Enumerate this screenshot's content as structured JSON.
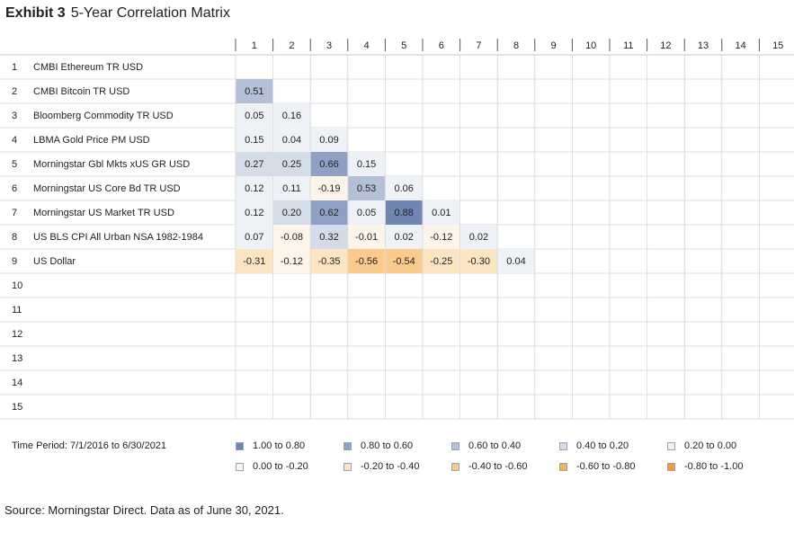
{
  "title": {
    "exhibit": "Exhibit 3",
    "text": "5-Year Correlation Matrix"
  },
  "chart_data": {
    "type": "heatmap",
    "columns": [
      "1",
      "2",
      "3",
      "4",
      "5",
      "6",
      "7",
      "8",
      "9",
      "10",
      "11",
      "12",
      "13",
      "14",
      "15"
    ],
    "rows": [
      {
        "num": "1",
        "label": "CMBI Ethereum TR USD",
        "values": []
      },
      {
        "num": "2",
        "label": "CMBI Bitcoin TR USD",
        "values": [
          0.51
        ]
      },
      {
        "num": "3",
        "label": "Bloomberg Commodity TR USD",
        "values": [
          0.05,
          0.16
        ]
      },
      {
        "num": "4",
        "label": "LBMA Gold Price PM USD",
        "values": [
          0.15,
          0.04,
          0.09
        ]
      },
      {
        "num": "5",
        "label": "Morningstar Gbl Mkts xUS GR USD",
        "values": [
          0.27,
          0.25,
          0.66,
          0.15
        ]
      },
      {
        "num": "6",
        "label": "Morningstar US Core Bd TR USD",
        "values": [
          0.12,
          0.11,
          -0.19,
          0.53,
          0.06
        ]
      },
      {
        "num": "7",
        "label": "Morningstar US Market TR USD",
        "values": [
          0.12,
          0.2,
          0.62,
          0.05,
          0.88,
          0.01
        ]
      },
      {
        "num": "8",
        "label": "US BLS CPI All Urban NSA 1982-1984",
        "values": [
          0.07,
          -0.08,
          0.32,
          -0.01,
          0.02,
          -0.12,
          0.02
        ]
      },
      {
        "num": "9",
        "label": "US Dollar",
        "values": [
          -0.31,
          -0.12,
          -0.35,
          -0.56,
          -0.54,
          -0.25,
          -0.3,
          0.04
        ]
      },
      {
        "num": "10",
        "label": "",
        "values": []
      },
      {
        "num": "11",
        "label": "",
        "values": []
      },
      {
        "num": "12",
        "label": "",
        "values": []
      },
      {
        "num": "13",
        "label": "",
        "values": []
      },
      {
        "num": "14",
        "label": "",
        "values": []
      },
      {
        "num": "15",
        "label": "",
        "values": []
      }
    ],
    "legend": [
      {
        "label": "1.00 to 0.80",
        "color": "#6f86b2"
      },
      {
        "label": "0.80 to 0.60",
        "color": "#8ea1c4"
      },
      {
        "label": "0.60 to 0.40",
        "color": "#b3c0d8"
      },
      {
        "label": "0.40 to 0.20",
        "color": "#d4dce9"
      },
      {
        "label": "0.20 to 0.00",
        "color": "#eef1f6"
      },
      {
        "label": "0.00 to -0.20",
        "color": "#fdf5e9"
      },
      {
        "label": "-0.20 to -0.40",
        "color": "#fde4c3"
      },
      {
        "label": "-0.40 to -0.60",
        "color": "#fbcb8d"
      },
      {
        "label": "-0.60 to -0.80",
        "color": "#f8b25a"
      },
      {
        "label": "-0.80 to -1.00",
        "color": "#f59c2c"
      }
    ]
  },
  "footer": {
    "time_period": "Time Period: 7/1/2016 to 6/30/2021",
    "source": "Source: Morningstar Direct. Data as of June 30, 2021."
  }
}
